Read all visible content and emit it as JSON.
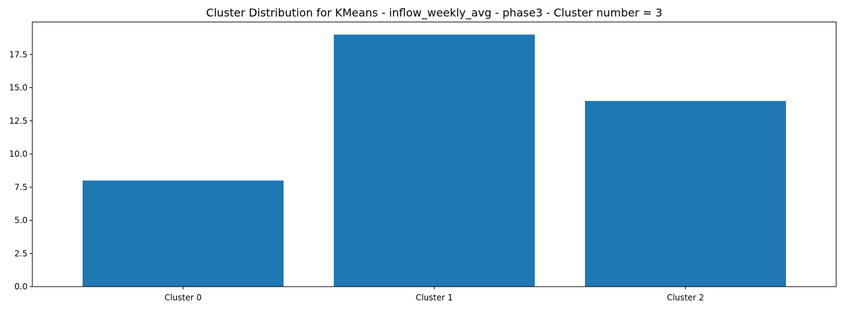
{
  "chart_data": {
    "type": "bar",
    "title": "Cluster Distribution for KMeans - inflow_weekly_avg - phase3 - Cluster number = 3",
    "xlabel": "",
    "ylabel": "",
    "categories": [
      "Cluster 0",
      "Cluster 1",
      "Cluster 2"
    ],
    "values": [
      8,
      19,
      14
    ],
    "ylim": [
      0,
      19.95
    ],
    "yticks": [
      0,
      2.5,
      5,
      7.5,
      10,
      12.5,
      15,
      17.5
    ],
    "ytick_labels": [
      "0.0",
      "2.5",
      "5.0",
      "7.5",
      "10.0",
      "12.5",
      "15.0",
      "17.5"
    ],
    "bar_color": "#1f77b4",
    "grid": false,
    "legend": false
  }
}
